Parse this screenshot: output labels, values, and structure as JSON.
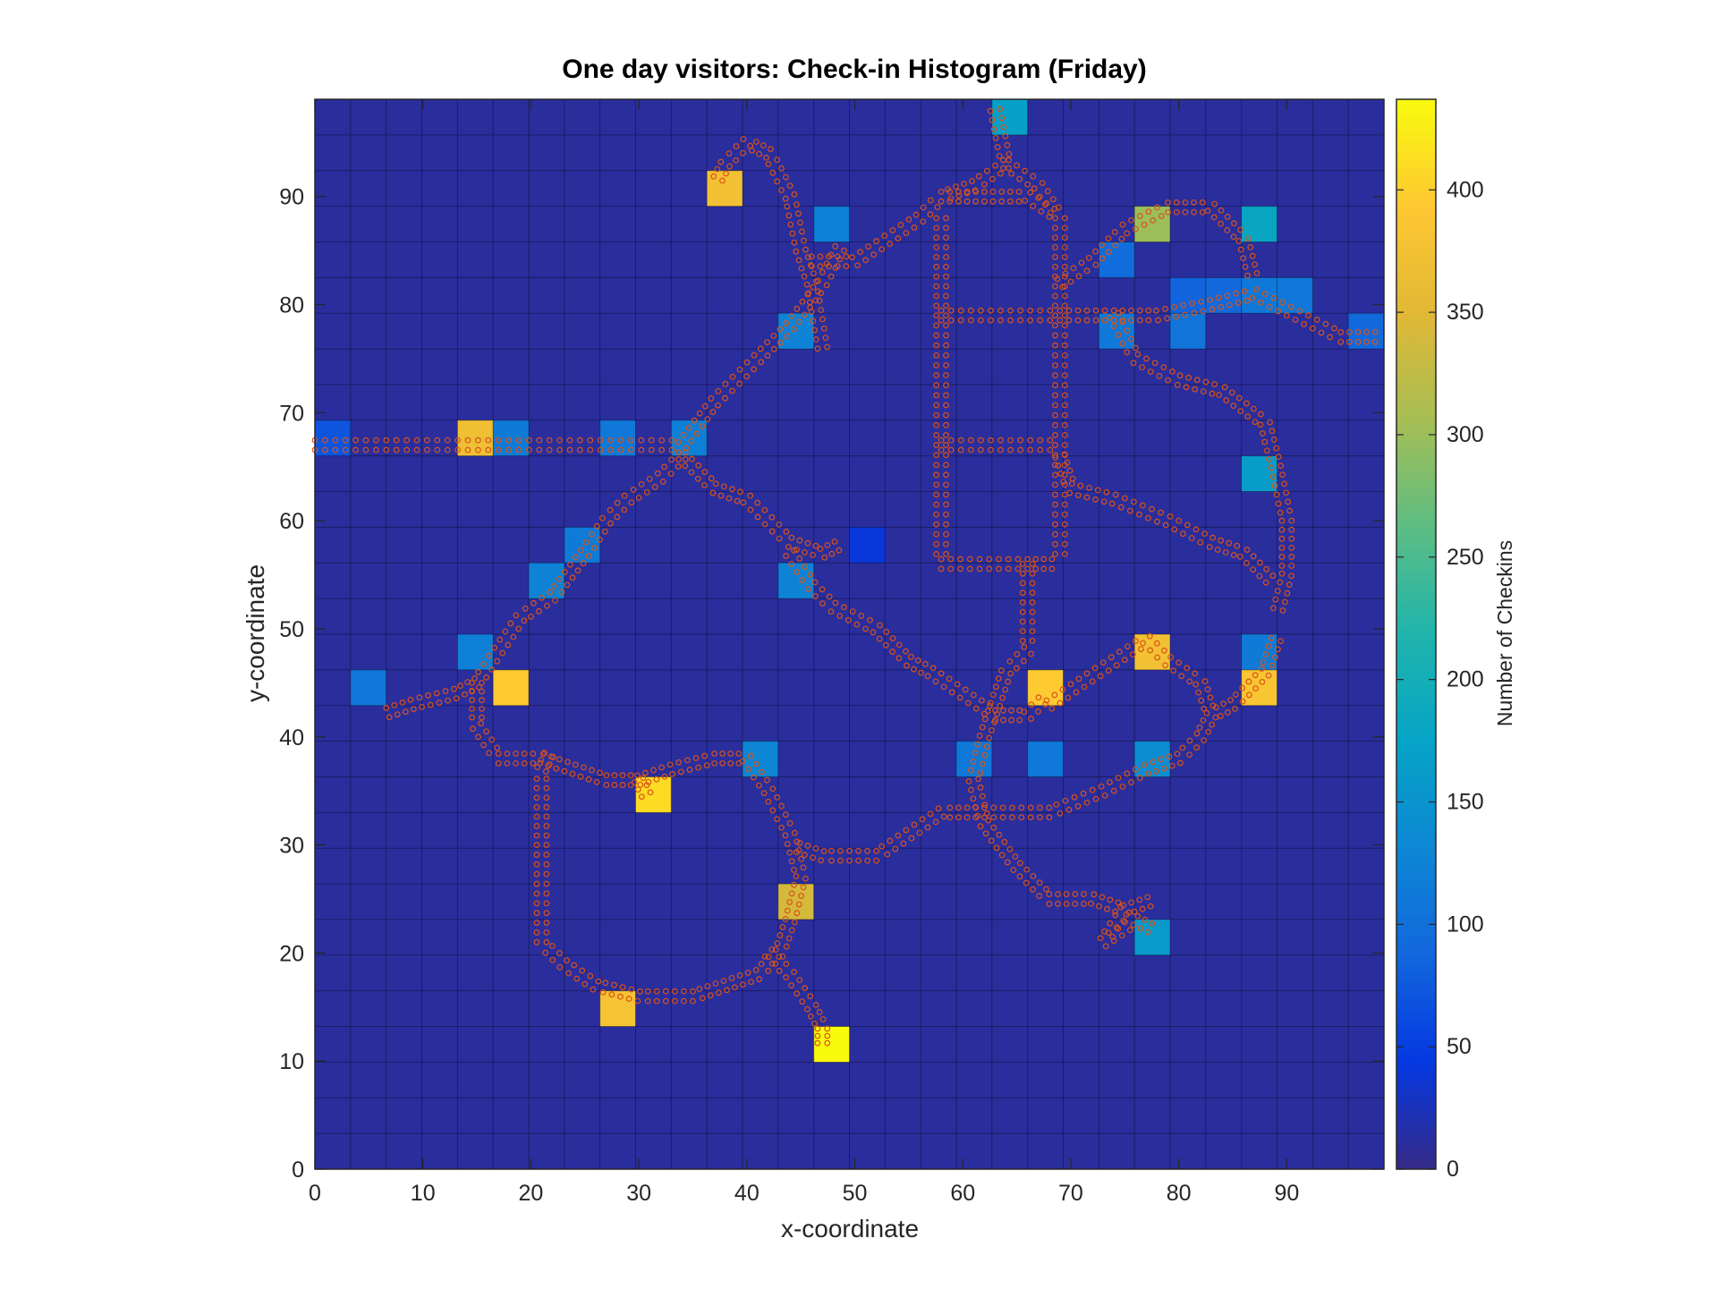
{
  "chart_data": {
    "type": "heatmap",
    "title": "One day visitors: Check-in Histogram (Friday)",
    "xlabel": "x-coordinate",
    "ylabel": "y-coordinate",
    "colorbar_label": "Number of Checkins",
    "xlim": [
      0,
      99
    ],
    "ylim": [
      0,
      99
    ],
    "bin_size": 3.3,
    "n_bins": 30,
    "x_ticks": [
      "0",
      "10",
      "20",
      "30",
      "40",
      "50",
      "60",
      "70",
      "80",
      "90"
    ],
    "y_ticks": [
      "0",
      "10",
      "20",
      "30",
      "40",
      "50",
      "60",
      "70",
      "80",
      "90"
    ],
    "colorbar_ticks": [
      "0",
      "50",
      "100",
      "150",
      "200",
      "250",
      "300",
      "350",
      "400"
    ],
    "clim": [
      0,
      437
    ],
    "colormap": "parula",
    "background_value": 10,
    "grid": true,
    "cells": [
      {
        "col": 19,
        "row": 29,
        "value": 170
      },
      {
        "col": 11,
        "row": 27,
        "value": 375
      },
      {
        "col": 14,
        "row": 26,
        "value": 120
      },
      {
        "col": 23,
        "row": 26,
        "value": 300
      },
      {
        "col": 26,
        "row": 26,
        "value": 180
      },
      {
        "col": 22,
        "row": 25,
        "value": 95
      },
      {
        "col": 24,
        "row": 24,
        "value": 85
      },
      {
        "col": 25,
        "row": 24,
        "value": 90
      },
      {
        "col": 26,
        "row": 24,
        "value": 110
      },
      {
        "col": 27,
        "row": 24,
        "value": 110
      },
      {
        "col": 13,
        "row": 23,
        "value": 125
      },
      {
        "col": 22,
        "row": 23,
        "value": 110
      },
      {
        "col": 24,
        "row": 23,
        "value": 105
      },
      {
        "col": 29,
        "row": 23,
        "value": 90
      },
      {
        "col": 0,
        "row": 20,
        "value": 70
      },
      {
        "col": 4,
        "row": 20,
        "value": 370
      },
      {
        "col": 5,
        "row": 20,
        "value": 115
      },
      {
        "col": 8,
        "row": 20,
        "value": 110
      },
      {
        "col": 10,
        "row": 20,
        "value": 120
      },
      {
        "col": 26,
        "row": 19,
        "value": 165
      },
      {
        "col": 7,
        "row": 17,
        "value": 115
      },
      {
        "col": 15,
        "row": 17,
        "value": 40
      },
      {
        "col": 6,
        "row": 16,
        "value": 125
      },
      {
        "col": 13,
        "row": 16,
        "value": 125
      },
      {
        "col": 4,
        "row": 14,
        "value": 120
      },
      {
        "col": 23,
        "row": 14,
        "value": 375
      },
      {
        "col": 26,
        "row": 14,
        "value": 115
      },
      {
        "col": 1,
        "row": 13,
        "value": 110
      },
      {
        "col": 5,
        "row": 13,
        "value": 395
      },
      {
        "col": 20,
        "row": 13,
        "value": 395
      },
      {
        "col": 26,
        "row": 13,
        "value": 385
      },
      {
        "col": 12,
        "row": 11,
        "value": 130
      },
      {
        "col": 18,
        "row": 11,
        "value": 110
      },
      {
        "col": 20,
        "row": 11,
        "value": 110
      },
      {
        "col": 23,
        "row": 11,
        "value": 140
      },
      {
        "col": 9,
        "row": 10,
        "value": 410
      },
      {
        "col": 13,
        "row": 7,
        "value": 340
      },
      {
        "col": 23,
        "row": 6,
        "value": 160
      },
      {
        "col": 8,
        "row": 4,
        "value": 380
      },
      {
        "col": 14,
        "row": 3,
        "value": 437
      }
    ],
    "overlay": {
      "type": "scatter",
      "marker": "circle",
      "color": "#D95319",
      "paths": [
        [
          [
            0,
            67
          ],
          [
            17,
            67
          ],
          [
            34,
            67
          ]
        ],
        [
          [
            34,
            67
          ],
          [
            37,
            71
          ],
          [
            41,
            75
          ],
          [
            44,
            78
          ],
          [
            47,
            82
          ],
          [
            49,
            86
          ]
        ],
        [
          [
            47,
            76
          ],
          [
            46,
            82
          ],
          [
            45,
            85
          ],
          [
            44,
            90
          ],
          [
            42,
            94
          ],
          [
            40,
            95
          ],
          [
            38,
            93
          ],
          [
            37,
            91
          ]
        ],
        [
          [
            46,
            84
          ],
          [
            50,
            84
          ],
          [
            53,
            86
          ],
          [
            56,
            88
          ],
          [
            58,
            90
          ],
          [
            62,
            90
          ],
          [
            66,
            90
          ],
          [
            69,
            88
          ]
        ],
        [
          [
            58,
            88
          ],
          [
            58,
            79
          ],
          [
            58,
            67
          ],
          [
            58,
            56
          ]
        ],
        [
          [
            69,
            88
          ],
          [
            69,
            79
          ],
          [
            69,
            67
          ],
          [
            69,
            56
          ]
        ],
        [
          [
            58,
            79
          ],
          [
            69,
            79
          ]
        ],
        [
          [
            58,
            67
          ],
          [
            69,
            67
          ]
        ],
        [
          [
            58,
            56
          ],
          [
            66,
            56
          ],
          [
            69,
            56
          ]
        ],
        [
          [
            63,
            98
          ],
          [
            64,
            93
          ],
          [
            61,
            91
          ],
          [
            58,
            90
          ]
        ],
        [
          [
            64,
            93
          ],
          [
            67,
            91
          ],
          [
            69,
            88
          ]
        ],
        [
          [
            69,
            79
          ],
          [
            74,
            79
          ],
          [
            78,
            79
          ],
          [
            83,
            80
          ],
          [
            87,
            81
          ],
          [
            91,
            79
          ],
          [
            95,
            77
          ],
          [
            99,
            77
          ]
        ],
        [
          [
            69,
            82
          ],
          [
            72,
            84
          ],
          [
            75,
            87
          ],
          [
            79,
            89
          ],
          [
            83,
            89
          ],
          [
            86,
            86
          ],
          [
            87,
            82
          ]
        ],
        [
          [
            74,
            79
          ],
          [
            76,
            75
          ],
          [
            80,
            73
          ],
          [
            84,
            72
          ],
          [
            88,
            69
          ],
          [
            89,
            65
          ],
          [
            90,
            60
          ],
          [
            90,
            55
          ],
          [
            89,
            51
          ]
        ],
        [
          [
            69,
            66
          ],
          [
            70,
            63
          ],
          [
            74,
            62
          ],
          [
            79,
            60
          ],
          [
            83,
            58
          ],
          [
            86,
            57
          ],
          [
            89,
            54
          ]
        ],
        [
          [
            34,
            66
          ],
          [
            32,
            64
          ],
          [
            29,
            62
          ],
          [
            27,
            60
          ],
          [
            25,
            57
          ],
          [
            22,
            53
          ],
          [
            19,
            51
          ],
          [
            17,
            48
          ],
          [
            15,
            45
          ]
        ],
        [
          [
            34,
            66
          ],
          [
            37,
            63
          ],
          [
            40,
            62
          ],
          [
            42,
            60
          ],
          [
            44,
            58
          ],
          [
            47,
            57
          ],
          [
            49,
            58
          ]
        ],
        [
          [
            44,
            57
          ],
          [
            46,
            54
          ],
          [
            48,
            52
          ],
          [
            52,
            50
          ],
          [
            55,
            47
          ],
          [
            57,
            46
          ],
          [
            60,
            44
          ],
          [
            63,
            42
          ],
          [
            66,
            42
          ],
          [
            68,
            44
          ]
        ],
        [
          [
            66,
            56
          ],
          [
            66,
            48
          ],
          [
            64,
            46
          ],
          [
            63,
            43
          ],
          [
            62,
            40
          ]
        ],
        [
          [
            68,
            43
          ],
          [
            71,
            45
          ],
          [
            74,
            47
          ],
          [
            77,
            49
          ],
          [
            79,
            47
          ],
          [
            82,
            45
          ],
          [
            83,
            42
          ],
          [
            82,
            40
          ],
          [
            80,
            38
          ],
          [
            77,
            37
          ],
          [
            73,
            35
          ],
          [
            68,
            33
          ],
          [
            62,
            33
          ],
          [
            58,
            33
          ],
          [
            55,
            31
          ],
          [
            52,
            29
          ],
          [
            47,
            29
          ],
          [
            44,
            30
          ]
        ],
        [
          [
            89,
            49
          ],
          [
            88,
            46
          ],
          [
            85,
            43
          ],
          [
            83,
            42
          ]
        ],
        [
          [
            62,
            40
          ],
          [
            61,
            36
          ],
          [
            62,
            32
          ],
          [
            65,
            28
          ],
          [
            68,
            25
          ],
          [
            72,
            25
          ],
          [
            75,
            24
          ],
          [
            78,
            25
          ]
        ],
        [
          [
            75,
            24
          ],
          [
            73,
            21
          ],
          [
            76,
            23
          ],
          [
            78,
            22
          ]
        ],
        [
          [
            15,
            45
          ],
          [
            13,
            44
          ],
          [
            9,
            43
          ],
          [
            6,
            42
          ]
        ],
        [
          [
            15,
            45
          ],
          [
            15,
            41
          ],
          [
            17,
            38
          ],
          [
            21,
            38
          ],
          [
            24,
            37
          ],
          [
            27,
            36
          ],
          [
            30,
            36
          ],
          [
            33,
            37
          ],
          [
            37,
            38
          ],
          [
            40,
            38
          ],
          [
            42,
            35
          ],
          [
            44,
            31
          ],
          [
            45,
            27
          ],
          [
            44,
            23
          ],
          [
            43,
            20
          ],
          [
            41,
            18
          ],
          [
            38,
            17
          ],
          [
            35,
            16
          ],
          [
            30,
            16
          ],
          [
            26,
            17
          ],
          [
            23,
            19
          ],
          [
            21,
            21
          ],
          [
            21,
            30
          ],
          [
            21,
            37
          ],
          [
            22,
            39
          ]
        ],
        [
          [
            42,
            20
          ],
          [
            44,
            18
          ],
          [
            46,
            15
          ],
          [
            47,
            13
          ],
          [
            47,
            11
          ]
        ],
        [
          [
            30,
            36
          ],
          [
            31,
            34
          ]
        ]
      ]
    }
  }
}
